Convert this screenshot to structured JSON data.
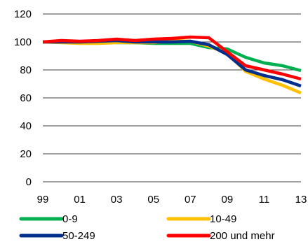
{
  "chart_data": {
    "type": "line",
    "title": "",
    "xlabel": "",
    "ylabel": "",
    "x": [
      "99",
      "00",
      "01",
      "02",
      "03",
      "04",
      "05",
      "06",
      "07",
      "08",
      "09",
      "10",
      "11",
      "12",
      "13"
    ],
    "x_tick_labels": [
      "99",
      "01",
      "03",
      "05",
      "07",
      "09",
      "11",
      "13"
    ],
    "y_ticks": [
      0,
      20,
      40,
      60,
      80,
      100,
      120
    ],
    "ylim": [
      0,
      120
    ],
    "grid": "horizontal",
    "legend_position": "bottom",
    "series": [
      {
        "name": "0-9",
        "color": "#00b050",
        "values": [
          100,
          100,
          99.5,
          100.5,
          99.5,
          99.5,
          99,
          99,
          99,
          96,
          95,
          89,
          85,
          83,
          79.5
        ]
      },
      {
        "name": "10-49",
        "color": "#ffc000",
        "values": [
          100,
          99.5,
          99,
          99,
          99.5,
          99.5,
          99.5,
          101,
          100.5,
          97,
          92,
          79,
          73.5,
          69,
          63.5
        ]
      },
      {
        "name": "50-249",
        "color": "#002f8e",
        "values": [
          100,
          100,
          100,
          100.5,
          101,
          100,
          100,
          100,
          100.5,
          98,
          91,
          80,
          76,
          73,
          68.5
        ]
      },
      {
        "name": "200 und mehr",
        "color": "#ff0000",
        "values": [
          100,
          101,
          100.5,
          101,
          102,
          101,
          102,
          102.5,
          103.5,
          103,
          93,
          83,
          80,
          77,
          73.5
        ]
      }
    ]
  }
}
